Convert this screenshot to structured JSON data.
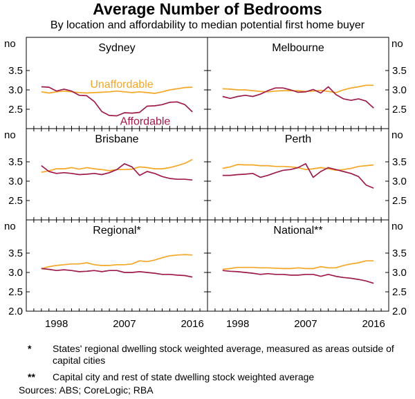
{
  "title": "Average Number of Bedrooms",
  "subtitle": "By location and affordability to median potential first home buyer",
  "unit_label": "no",
  "notes": [
    {
      "marker": "*",
      "text": "States' regional dwelling stock weighted average, measured as areas outside of capital cities"
    },
    {
      "marker": "**",
      "text": "Capital city and rest of state dwelling stock weighted average"
    }
  ],
  "source": "Sources: ABS; CoreLogic; RBA",
  "colors": {
    "unaffordable": "#f5a623",
    "affordable": "#9e1a4a"
  },
  "chart_data": {
    "type": "line",
    "xlim": [
      1994,
      2018
    ],
    "ylim": [
      2.0,
      4.0
    ],
    "x_ticks": [
      1998,
      2007,
      2016
    ],
    "y_ticks": [
      2.5,
      3.0,
      3.5
    ],
    "y_ticks_bottom_row": [
      2.0,
      2.5,
      3.0,
      3.5
    ],
    "x": [
      1996,
      1997,
      1998,
      1999,
      2000,
      2001,
      2002,
      2003,
      2004,
      2005,
      2006,
      2007,
      2008,
      2009,
      2010,
      2011,
      2012,
      2013,
      2014,
      2015,
      2016
    ],
    "panels": [
      {
        "name": "Sydney",
        "series": [
          {
            "name": "Unaffordable",
            "values": [
              2.95,
              2.92,
              2.95,
              2.97,
              2.95,
              2.93,
              2.92,
              2.93,
              2.94,
              2.95,
              2.97,
              2.95,
              2.93,
              2.95,
              2.93,
              2.91,
              2.95,
              3.0,
              3.03,
              3.06,
              3.07
            ]
          },
          {
            "name": "Affordable",
            "values": [
              3.08,
              3.07,
              2.97,
              3.02,
              2.97,
              2.86,
              2.85,
              2.7,
              2.44,
              2.34,
              2.33,
              2.41,
              2.4,
              2.42,
              2.58,
              2.59,
              2.62,
              2.68,
              2.69,
              2.62,
              2.43
            ]
          }
        ]
      },
      {
        "name": "Melbourne",
        "series": [
          {
            "name": "",
            "values": [
              3.03,
              3.02,
              3.0,
              3.0,
              2.98,
              2.96,
              2.95,
              2.97,
              2.98,
              2.98,
              2.98,
              2.96,
              2.97,
              2.99,
              2.96,
              2.93,
              3.0,
              3.05,
              3.08,
              3.12,
              3.12
            ]
          },
          {
            "name": "",
            "values": [
              2.83,
              2.78,
              2.83,
              2.86,
              2.83,
              2.89,
              2.98,
              3.05,
              3.05,
              3.0,
              2.94,
              2.95,
              3.01,
              2.92,
              3.08,
              2.88,
              2.77,
              2.73,
              2.77,
              2.71,
              2.53
            ]
          }
        ]
      },
      {
        "name": "Brisbane",
        "series": [
          {
            "name": "",
            "values": [
              3.23,
              3.27,
              3.32,
              3.32,
              3.35,
              3.31,
              3.35,
              3.32,
              3.3,
              3.27,
              3.3,
              3.3,
              3.31,
              3.37,
              3.35,
              3.32,
              3.32,
              3.35,
              3.4,
              3.46,
              3.56
            ]
          },
          {
            "name": "",
            "values": [
              3.4,
              3.25,
              3.2,
              3.22,
              3.2,
              3.17,
              3.18,
              3.2,
              3.17,
              3.22,
              3.3,
              3.45,
              3.37,
              3.15,
              3.25,
              3.2,
              3.12,
              3.07,
              3.05,
              3.05,
              3.03
            ]
          }
        ]
      },
      {
        "name": "Perth",
        "series": [
          {
            "name": "",
            "values": [
              3.33,
              3.37,
              3.43,
              3.42,
              3.42,
              3.4,
              3.4,
              3.38,
              3.38,
              3.37,
              3.35,
              3.3,
              3.32,
              3.35,
              3.32,
              3.28,
              3.3,
              3.33,
              3.38,
              3.4,
              3.42
            ]
          },
          {
            "name": "",
            "values": [
              3.15,
              3.15,
              3.17,
              3.18,
              3.2,
              3.1,
              3.15,
              3.22,
              3.28,
              3.3,
              3.35,
              3.45,
              3.1,
              3.25,
              3.35,
              3.3,
              3.25,
              3.2,
              3.12,
              2.9,
              2.82
            ]
          }
        ]
      },
      {
        "name": "Regional*",
        "series": [
          {
            "name": "",
            "values": [
              3.1,
              3.15,
              3.18,
              3.2,
              3.22,
              3.22,
              3.25,
              3.2,
              3.18,
              3.18,
              3.2,
              3.2,
              3.22,
              3.3,
              3.28,
              3.32,
              3.38,
              3.43,
              3.45,
              3.46,
              3.45
            ]
          },
          {
            "name": "",
            "values": [
              3.1,
              3.08,
              3.05,
              3.07,
              3.05,
              3.02,
              3.03,
              3.05,
              3.02,
              3.05,
              3.05,
              3.0,
              3.0,
              3.02,
              3.0,
              2.98,
              2.95,
              2.95,
              2.93,
              2.92,
              2.88
            ]
          }
        ]
      },
      {
        "name": "National**",
        "series": [
          {
            "name": "",
            "values": [
              3.08,
              3.1,
              3.13,
              3.13,
              3.13,
              3.12,
              3.12,
              3.11,
              3.1,
              3.1,
              3.12,
              3.1,
              3.1,
              3.15,
              3.12,
              3.12,
              3.18,
              3.22,
              3.25,
              3.3,
              3.3
            ]
          },
          {
            "name": "",
            "values": [
              3.05,
              3.03,
              3.02,
              3.0,
              2.98,
              2.95,
              2.97,
              2.95,
              2.95,
              2.93,
              2.93,
              2.95,
              2.95,
              2.9,
              2.95,
              2.9,
              2.87,
              2.85,
              2.82,
              2.78,
              2.72
            ]
          }
        ]
      }
    ],
    "annotations": [
      {
        "panel": "Sydney",
        "series": "Unaffordable",
        "text": "Unaffordable"
      },
      {
        "panel": "Sydney",
        "series": "Affordable",
        "text": "Affordable"
      }
    ],
    "grid": false,
    "legend": "inline labels in Sydney panel"
  }
}
